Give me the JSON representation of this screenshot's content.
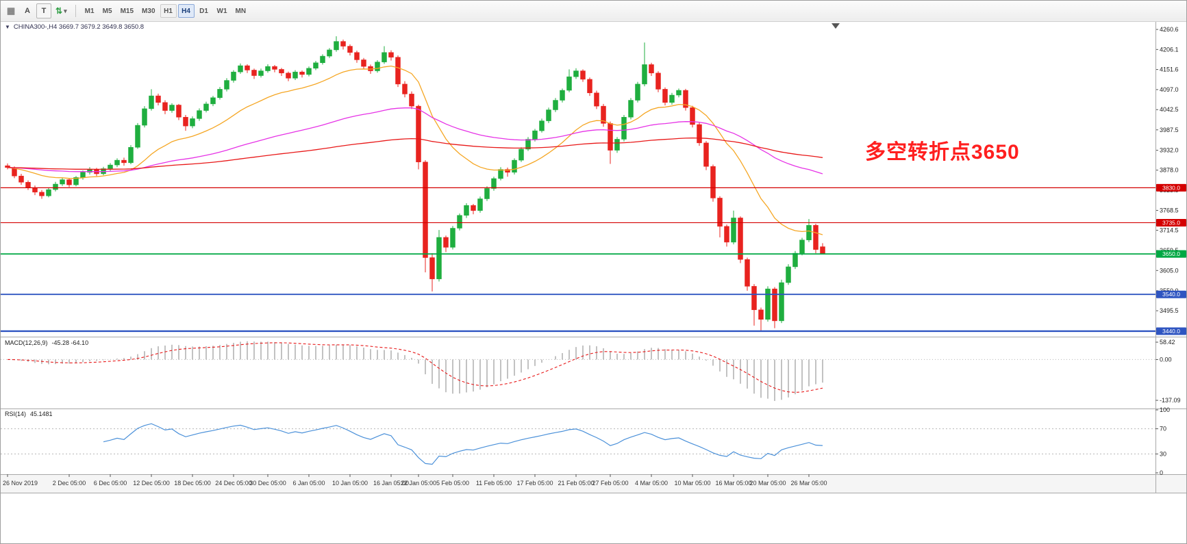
{
  "toolbar": {
    "tools": [
      {
        "glyph": "▦"
      },
      {
        "glyph": "A"
      },
      {
        "glyph": "T"
      },
      {
        "glyph": "⇅"
      },
      {
        "glyph": "▾"
      }
    ],
    "timeframes": [
      "M1",
      "M5",
      "M15",
      "M30",
      "H1",
      "H4",
      "D1",
      "W1",
      "MN"
    ],
    "active_timeframe": "H4"
  },
  "chart": {
    "dropdown_glyph": "▼"
  },
  "chart_data": {
    "type": "candlestick",
    "symbol": "CHINA300-",
    "timeframe": "H4",
    "title": "CHINA300-,H4 3669.7 3679.2 3649.8 3650.8",
    "current_bar": {
      "open": 3669.7,
      "high": 3679.2,
      "low": 3649.8,
      "close": 3650.8
    },
    "price_range": [
      3425,
      4283
    ],
    "y_axis_ticks": [
      4260.6,
      4206.1,
      4151.6,
      4097.0,
      4042.5,
      3987.5,
      3932.0,
      3878.0,
      3823.5,
      3768.5,
      3714.5,
      3659.5,
      3605.0,
      3550.0,
      3495.5,
      3441.0
    ],
    "annotation": {
      "text": "多空转折点3650",
      "color": "#ff1f1f"
    },
    "colors": {
      "up": "#1fae3f",
      "down": "#e8231f",
      "macd_hist": "#a0a0a0",
      "macd_signal": "#e81717",
      "rsi_line": "#4a90d9"
    },
    "horizontal_lines": [
      {
        "price": 3830.0,
        "label": "3830.0",
        "color": "#d40000",
        "width": 1.2
      },
      {
        "price": 3735.0,
        "label": "3735.0",
        "color": "#d40000",
        "width": 1.2
      },
      {
        "price": 3650.0,
        "label": "3650.0",
        "color": "#00a843",
        "width": 1.8
      },
      {
        "price": 3540.0,
        "label": "3540.0",
        "color": "#2f55c1",
        "width": 1.8
      },
      {
        "price": 3440.0,
        "label": "3440.0",
        "color": "#2f55c1",
        "width": 2.4
      }
    ],
    "moving_averages": [
      {
        "period": 20,
        "color": "#f5a623"
      },
      {
        "period": 75,
        "color": "#e632e6"
      },
      {
        "period": 200,
        "color": "#e81717"
      }
    ],
    "x_labels": [
      {
        "i": 0,
        "label": "26 Nov 2019"
      },
      {
        "i": 9,
        "label": "2 Dec 05:00"
      },
      {
        "i": 15,
        "label": "6 Dec 05:00"
      },
      {
        "i": 21,
        "label": "12 Dec 05:00"
      },
      {
        "i": 27,
        "label": "18 Dec 05:00"
      },
      {
        "i": 33,
        "label": "24 Dec 05:00"
      },
      {
        "i": 38,
        "label": "30 Dec 05:00"
      },
      {
        "i": 44,
        "label": "6 Jan 05:00"
      },
      {
        "i": 50,
        "label": "10 Jan 05:00"
      },
      {
        "i": 56,
        "label": "16 Jan 05:00"
      },
      {
        "i": 60,
        "label": "22 Jan 05:00"
      },
      {
        "i": 65,
        "label": "5 Feb 05:00"
      },
      {
        "i": 71,
        "label": "11 Feb 05:00"
      },
      {
        "i": 77,
        "label": "17 Feb 05:00"
      },
      {
        "i": 83,
        "label": "21 Feb 05:00"
      },
      {
        "i": 88,
        "label": "27 Feb 05:00"
      },
      {
        "i": 94,
        "label": "4 Mar 05:00"
      },
      {
        "i": 100,
        "label": "10 Mar 05:00"
      },
      {
        "i": 106,
        "label": "16 Mar 05:00"
      },
      {
        "i": 111,
        "label": "20 Mar 05:00"
      },
      {
        "i": 117,
        "label": "26 Mar 05:00"
      }
    ],
    "candles": [
      [
        3890,
        3896,
        3880,
        3885
      ],
      [
        3885,
        3888,
        3856,
        3862
      ],
      [
        3862,
        3868,
        3838,
        3845
      ],
      [
        3845,
        3850,
        3824,
        3830
      ],
      [
        3830,
        3836,
        3810,
        3818
      ],
      [
        3818,
        3824,
        3800,
        3808
      ],
      [
        3808,
        3830,
        3804,
        3825
      ],
      [
        3825,
        3846,
        3820,
        3840
      ],
      [
        3840,
        3858,
        3835,
        3852
      ],
      [
        3852,
        3856,
        3832,
        3838
      ],
      [
        3838,
        3862,
        3834,
        3858
      ],
      [
        3858,
        3877,
        3852,
        3872
      ],
      [
        3872,
        3886,
        3866,
        3880
      ],
      [
        3880,
        3884,
        3862,
        3868
      ],
      [
        3868,
        3887,
        3864,
        3882
      ],
      [
        3882,
        3897,
        3876,
        3892
      ],
      [
        3892,
        3910,
        3886,
        3905
      ],
      [
        3905,
        3912,
        3890,
        3898
      ],
      [
        3898,
        3946,
        3894,
        3940
      ],
      [
        3940,
        4006,
        3936,
        4000
      ],
      [
        4000,
        4052,
        3994,
        4045
      ],
      [
        4045,
        4098,
        4040,
        4080
      ],
      [
        4080,
        4086,
        4054,
        4062
      ],
      [
        4062,
        4068,
        4030,
        4040
      ],
      [
        4040,
        4060,
        4034,
        4055
      ],
      [
        4055,
        4058,
        4014,
        4022
      ],
      [
        4022,
        4028,
        3985,
        3998
      ],
      [
        3998,
        4024,
        3992,
        4018
      ],
      [
        4018,
        4046,
        4012,
        4040
      ],
      [
        4040,
        4064,
        4035,
        4058
      ],
      [
        4058,
        4080,
        4052,
        4075
      ],
      [
        4075,
        4104,
        4070,
        4098
      ],
      [
        4098,
        4128,
        4092,
        4122
      ],
      [
        4122,
        4150,
        4116,
        4145
      ],
      [
        4145,
        4168,
        4140,
        4162
      ],
      [
        4162,
        4166,
        4142,
        4150
      ],
      [
        4150,
        4154,
        4126,
        4135
      ],
      [
        4135,
        4154,
        4130,
        4148
      ],
      [
        4148,
        4166,
        4143,
        4160
      ],
      [
        4160,
        4164,
        4144,
        4152
      ],
      [
        4152,
        4156,
        4134,
        4142
      ],
      [
        4142,
        4146,
        4120,
        4128
      ],
      [
        4128,
        4150,
        4123,
        4145
      ],
      [
        4145,
        4149,
        4130,
        4138
      ],
      [
        4138,
        4160,
        4133,
        4155
      ],
      [
        4155,
        4175,
        4150,
        4170
      ],
      [
        4170,
        4193,
        4165,
        4188
      ],
      [
        4188,
        4210,
        4183,
        4205
      ],
      [
        4205,
        4242,
        4200,
        4228
      ],
      [
        4228,
        4233,
        4206,
        4215
      ],
      [
        4215,
        4220,
        4190,
        4198
      ],
      [
        4198,
        4203,
        4170,
        4178
      ],
      [
        4178,
        4183,
        4152,
        4160
      ],
      [
        4160,
        4165,
        4140,
        4148
      ],
      [
        4148,
        4177,
        4143,
        4172
      ],
      [
        4172,
        4215,
        4167,
        4198
      ],
      [
        4198,
        4204,
        4176,
        4185
      ],
      [
        4185,
        4190,
        4104,
        4112
      ],
      [
        4112,
        4120,
        4076,
        4085
      ],
      [
        4085,
        4092,
        4044,
        4052
      ],
      [
        4052,
        4056,
        3880,
        3900
      ],
      [
        3900,
        3905,
        3600,
        3640
      ],
      [
        3640,
        3652,
        3548,
        3582
      ],
      [
        3582,
        3715,
        3575,
        3695
      ],
      [
        3695,
        3700,
        3655,
        3668
      ],
      [
        3668,
        3726,
        3662,
        3720
      ],
      [
        3720,
        3760,
        3714,
        3755
      ],
      [
        3755,
        3788,
        3748,
        3782
      ],
      [
        3782,
        3786,
        3758,
        3768
      ],
      [
        3768,
        3806,
        3762,
        3800
      ],
      [
        3800,
        3834,
        3794,
        3828
      ],
      [
        3828,
        3860,
        3822,
        3855
      ],
      [
        3855,
        3886,
        3850,
        3880
      ],
      [
        3880,
        3885,
        3860,
        3872
      ],
      [
        3872,
        3910,
        3866,
        3905
      ],
      [
        3905,
        3940,
        3900,
        3935
      ],
      [
        3935,
        3968,
        3930,
        3962
      ],
      [
        3962,
        3990,
        3956,
        3985
      ],
      [
        3985,
        4018,
        3980,
        4012
      ],
      [
        4012,
        4048,
        4006,
        4042
      ],
      [
        4042,
        4074,
        4036,
        4068
      ],
      [
        4068,
        4100,
        4062,
        4095
      ],
      [
        4095,
        4152,
        4090,
        4132
      ],
      [
        4132,
        4155,
        4126,
        4148
      ],
      [
        4148,
        4152,
        4118,
        4125
      ],
      [
        4125,
        4130,
        4080,
        4088
      ],
      [
        4088,
        4094,
        4044,
        4052
      ],
      [
        4052,
        4058,
        3996,
        4005
      ],
      [
        4005,
        4010,
        3895,
        3932
      ],
      [
        3932,
        3968,
        3925,
        3962
      ],
      [
        3962,
        4028,
        3956,
        4022
      ],
      [
        4022,
        4074,
        4016,
        4068
      ],
      [
        4068,
        4118,
        4062,
        4112
      ],
      [
        4112,
        4225,
        4106,
        4165
      ],
      [
        4165,
        4170,
        4134,
        4142
      ],
      [
        4142,
        4147,
        4090,
        4098
      ],
      [
        4098,
        4103,
        4054,
        4062
      ],
      [
        4062,
        4088,
        4056,
        4082
      ],
      [
        4082,
        4100,
        4076,
        4095
      ],
      [
        4095,
        4099,
        4040,
        4048
      ],
      [
        4048,
        4053,
        3994,
        4002
      ],
      [
        4002,
        4007,
        3944,
        3952
      ],
      [
        3952,
        3957,
        3878,
        3888
      ],
      [
        3888,
        3893,
        3792,
        3802
      ],
      [
        3802,
        3807,
        3695,
        3725
      ],
      [
        3725,
        3730,
        3670,
        3682
      ],
      [
        3682,
        3768,
        3676,
        3748
      ],
      [
        3748,
        3752,
        3625,
        3635
      ],
      [
        3635,
        3640,
        3550,
        3562
      ],
      [
        3562,
        3568,
        3455,
        3498
      ],
      [
        3498,
        3504,
        3442,
        3472
      ],
      [
        3472,
        3562,
        3466,
        3555
      ],
      [
        3555,
        3560,
        3448,
        3468
      ],
      [
        3468,
        3580,
        3462,
        3572
      ],
      [
        3572,
        3622,
        3566,
        3615
      ],
      [
        3615,
        3658,
        3609,
        3652
      ],
      [
        3652,
        3694,
        3646,
        3688
      ],
      [
        3688,
        3745,
        3682,
        3728
      ],
      [
        3728,
        3732,
        3652,
        3662
      ],
      [
        3669.7,
        3679.2,
        3649.8,
        3650.8
      ]
    ],
    "indicators": {
      "macd": {
        "title": "MACD(12,26,9)",
        "values_text": "-45.28 -64.10",
        "fast": 12,
        "slow": 26,
        "signal": 9,
        "range": [
          -160,
          70
        ],
        "ticks": [
          {
            "v": 58.42,
            "label": "58.42"
          },
          {
            "v": 0,
            "label": "0.00"
          },
          {
            "v": -137.09,
            "label": "-137.09"
          }
        ]
      },
      "rsi": {
        "title": "RSI(14)",
        "value_text": "45.1481",
        "period": 14,
        "levels": [
          70,
          30
        ],
        "ticks": [
          {
            "v": 100,
            "label": "100"
          },
          {
            "v": 70,
            "label": "70"
          },
          {
            "v": 30,
            "label": "30"
          },
          {
            "v": 0,
            "label": "0"
          }
        ]
      }
    }
  }
}
